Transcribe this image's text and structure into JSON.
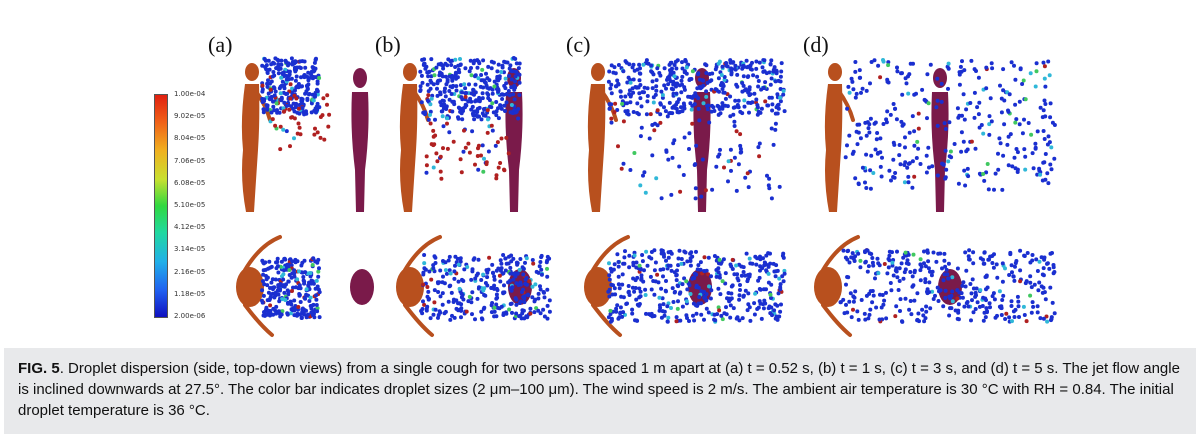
{
  "figure": {
    "panels": [
      {
        "label": "(a)"
      },
      {
        "label": "(b)"
      },
      {
        "label": "(c)"
      },
      {
        "label": "(d)"
      }
    ],
    "colorbar": {
      "ticks": [
        "1.00e-04",
        "9.02e-05",
        "8.04e-05",
        "7.06e-05",
        "6.08e-05",
        "5.10e-05",
        "4.12e-05",
        "3.14e-05",
        "2.16e-05",
        "1.18e-05",
        "2.00e-06"
      ],
      "colors": [
        "#e02010",
        "#f06018",
        "#f0b020",
        "#c8e030",
        "#30d840",
        "#20d8a0",
        "#20b0e8",
        "#2060f0",
        "#1010c0"
      ]
    },
    "colors": {
      "emitter": "#b8501e",
      "receiver": "#7a1a4a",
      "droplet_blue": "#1a2fd0",
      "droplet_red": "#b02020",
      "droplet_green": "#40c860",
      "droplet_cyan": "#30b8d8"
    }
  },
  "caption": {
    "label": "FIG. 5",
    "text": ". Droplet dispersion (side, top-down views) from a single cough for two persons spaced 1 m apart at (a) t = 0.52 s, (b) t = 1 s, (c) t = 3 s, and (d) t = 5 s. The jet flow angle is inclined downwards at 27.5°. The color bar indicates droplet sizes (2 μm–100 μm). The wind speed is 2 m/s. The ambient air temperature is 30 °C with RH = 0.84. The initial droplet temperature is 36 °C."
  }
}
